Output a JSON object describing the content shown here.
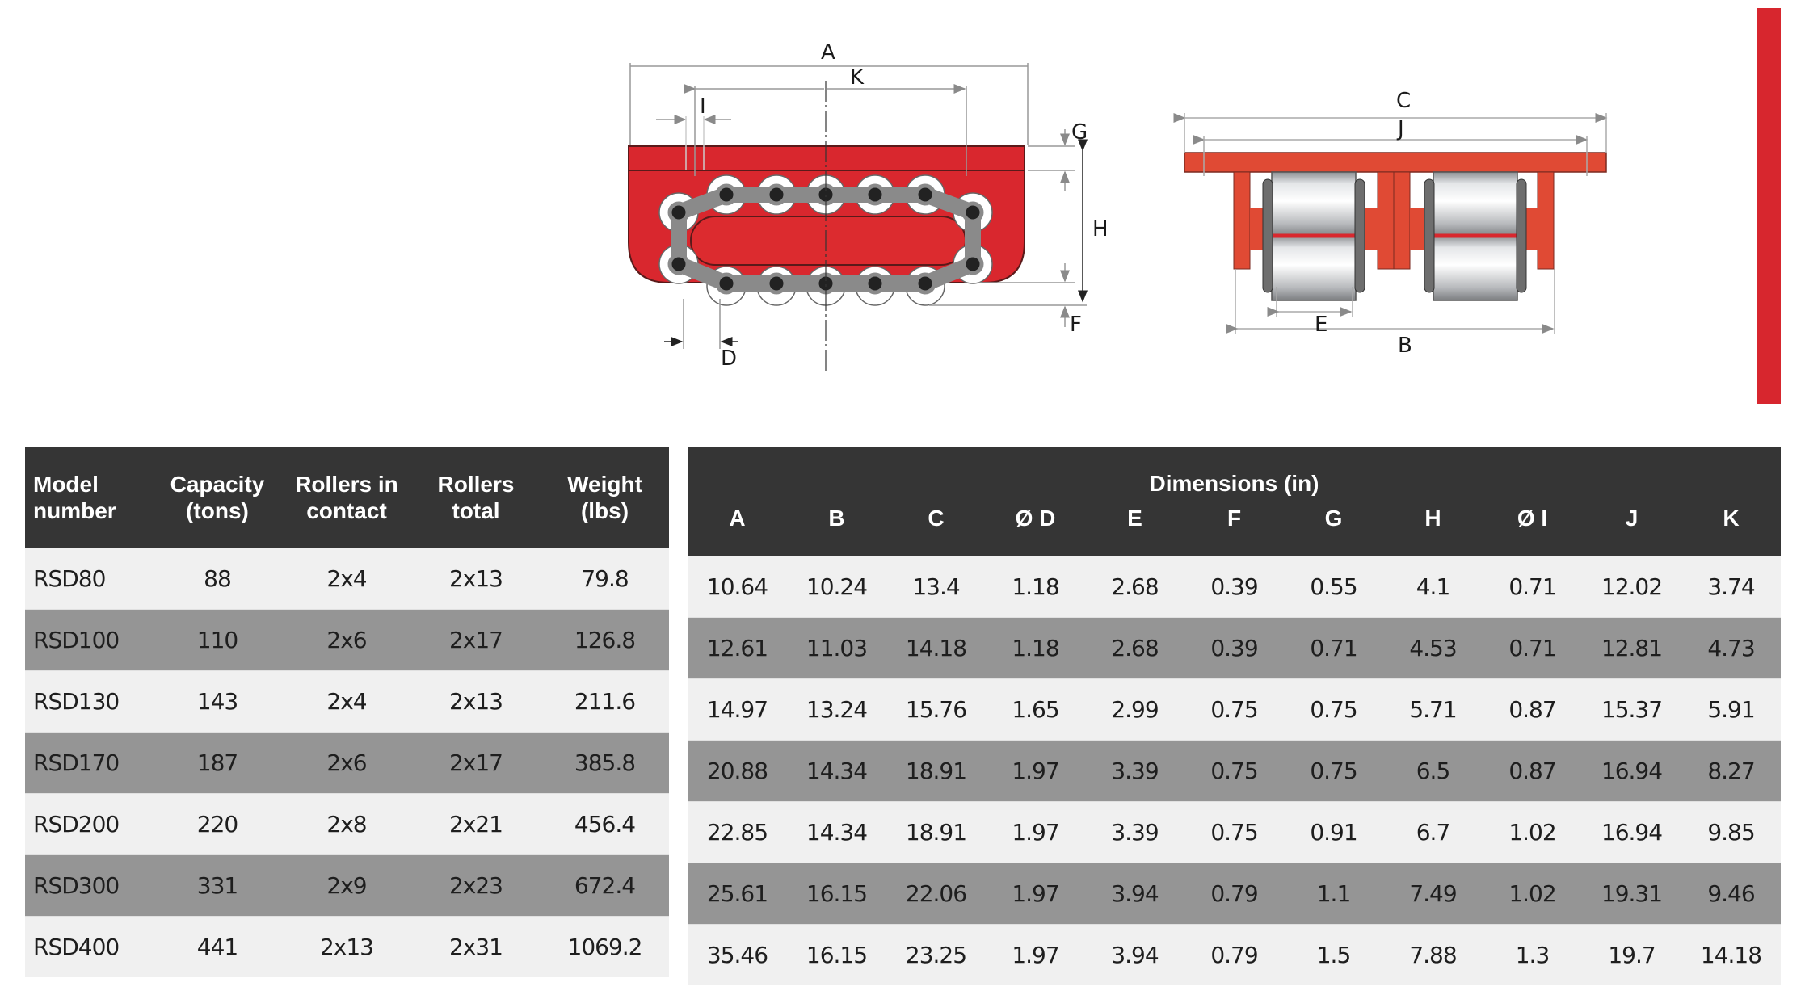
{
  "diagram": {
    "side_view_labels": {
      "A": "A",
      "K": "K",
      "I": "I",
      "G": "G",
      "H": "H",
      "F": "F",
      "D": "D"
    },
    "end_view_labels": {
      "C": "C",
      "J": "J",
      "E": "E",
      "B": "B"
    },
    "colors": {
      "body_red": "#d9272e",
      "chain_gray": "#8a8a8a",
      "roller_silver": "#c8c8c8",
      "accent_bar": "#d7262e"
    }
  },
  "left_table": {
    "headers": [
      "Model number",
      "Capacity (tons)",
      "Rollers in contact",
      "Rollers total",
      "Weight (lbs)"
    ],
    "header_lines": [
      [
        "Model",
        "number"
      ],
      [
        "Capacity",
        "(tons)"
      ],
      [
        "Rollers in",
        "contact"
      ],
      [
        "Rollers",
        "total"
      ],
      [
        "Weight",
        "(lbs)"
      ]
    ],
    "rows": [
      [
        "RSD80",
        "88",
        "2x4",
        "2x13",
        "79.8"
      ],
      [
        "RSD100",
        "110",
        "2x6",
        "2x17",
        "126.8"
      ],
      [
        "RSD130",
        "143",
        "2x4",
        "2x13",
        "211.6"
      ],
      [
        "RSD170",
        "187",
        "2x6",
        "2x17",
        "385.8"
      ],
      [
        "RSD200",
        "220",
        "2x8",
        "2x21",
        "456.4"
      ],
      [
        "RSD300",
        "331",
        "2x9",
        "2x23",
        "672.4"
      ],
      [
        "RSD400",
        "441",
        "2x13",
        "2x31",
        "1069.2"
      ]
    ]
  },
  "right_table": {
    "group_header": "Dimensions (in)",
    "headers": [
      "A",
      "B",
      "C",
      "Ø D",
      "E",
      "F",
      "G",
      "H",
      "Ø I",
      "J",
      "K"
    ],
    "rows": [
      [
        "10.64",
        "10.24",
        "13.4",
        "1.18",
        "2.68",
        "0.39",
        "0.55",
        "4.1",
        "0.71",
        "12.02",
        "3.74"
      ],
      [
        "12.61",
        "11.03",
        "14.18",
        "1.18",
        "2.68",
        "0.39",
        "0.71",
        "4.53",
        "0.71",
        "12.81",
        "4.73"
      ],
      [
        "14.97",
        "13.24",
        "15.76",
        "1.65",
        "2.99",
        "0.75",
        "0.75",
        "5.71",
        "0.87",
        "15.37",
        "5.91"
      ],
      [
        "20.88",
        "14.34",
        "18.91",
        "1.97",
        "3.39",
        "0.75",
        "0.75",
        "6.5",
        "0.87",
        "16.94",
        "8.27"
      ],
      [
        "22.85",
        "14.34",
        "18.91",
        "1.97",
        "3.39",
        "0.75",
        "0.91",
        "6.7",
        "1.02",
        "16.94",
        "9.85"
      ],
      [
        "25.61",
        "16.15",
        "22.06",
        "1.97",
        "3.94",
        "0.79",
        "1.1",
        "7.49",
        "1.02",
        "19.31",
        "9.46"
      ],
      [
        "35.46",
        "16.15",
        "23.25",
        "1.97",
        "3.94",
        "0.79",
        "1.5",
        "7.88",
        "1.3",
        "19.7",
        "14.18"
      ]
    ]
  },
  "colors": {
    "header_bg": "#353535",
    "row_light": "#f0f0f0",
    "row_dark": "#959595"
  }
}
